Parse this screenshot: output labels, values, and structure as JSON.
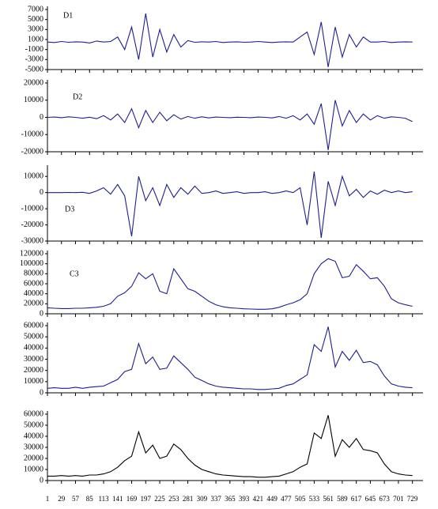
{
  "chart_data": [
    {
      "type": "line",
      "label": "D1",
      "x": [
        1,
        15,
        29,
        43,
        57,
        71,
        85,
        99,
        113,
        127,
        141,
        155,
        169,
        183,
        197,
        211,
        225,
        239,
        253,
        267,
        281,
        295,
        309,
        323,
        337,
        351,
        365,
        379,
        393,
        407,
        421,
        435,
        449,
        463,
        477,
        491,
        505,
        519,
        533,
        547,
        561,
        575,
        589,
        603,
        617,
        631,
        645,
        659,
        673,
        687,
        701,
        715,
        729
      ],
      "series": [
        {
          "color": "#1f1f8f",
          "values": [
            500,
            400,
            600,
            450,
            550,
            500,
            300,
            700,
            500,
            600,
            1500,
            -1000,
            3500,
            -3000,
            6200,
            -2500,
            3000,
            -1500,
            2000,
            -500,
            800,
            450,
            550,
            500,
            600,
            400,
            500,
            550,
            450,
            500,
            600,
            500,
            400,
            500,
            550,
            500,
            1500,
            2500,
            -2000,
            4500,
            -4500,
            3500,
            -2500,
            2000,
            -500,
            1500,
            500,
            500,
            600,
            400,
            500,
            550,
            500
          ]
        }
      ],
      "xlim": [
        1,
        750
      ],
      "xticks": [
        1,
        29,
        57,
        85,
        113,
        141,
        169,
        197,
        225,
        253,
        281,
        309,
        337,
        365,
        393,
        421,
        449,
        477,
        505,
        533,
        561,
        589,
        617,
        645,
        673,
        701,
        729
      ],
      "xtick_labels": false,
      "ylim": [
        -5000,
        7000
      ],
      "yticks": [
        -5000,
        -3000,
        -1000,
        1000,
        3000,
        5000,
        7000
      ]
    },
    {
      "type": "line",
      "label": "D2",
      "x": [
        1,
        15,
        29,
        43,
        57,
        71,
        85,
        99,
        113,
        127,
        141,
        155,
        169,
        183,
        197,
        211,
        225,
        239,
        253,
        267,
        281,
        295,
        309,
        323,
        337,
        351,
        365,
        379,
        393,
        407,
        421,
        435,
        449,
        463,
        477,
        491,
        505,
        519,
        533,
        547,
        561,
        575,
        589,
        603,
        617,
        631,
        645,
        659,
        673,
        687,
        701,
        715,
        729
      ],
      "series": [
        {
          "color": "#1f1f8f",
          "values": [
            0,
            200,
            -200,
            300,
            0,
            -500,
            100,
            -800,
            1000,
            -1500,
            2000,
            -3000,
            5000,
            -6000,
            4000,
            -3000,
            3000,
            -2000,
            1500,
            -1000,
            500,
            -500,
            300,
            -300,
            200,
            0,
            -200,
            100,
            0,
            -200,
            200,
            0,
            -300,
            500,
            -500,
            1000,
            -1500,
            2000,
            -4000,
            8000,
            -19000,
            10000,
            -5000,
            4000,
            -3000,
            2000,
            -1500,
            1000,
            -500,
            300,
            0,
            -500,
            -2500
          ]
        }
      ],
      "xlim": [
        1,
        750
      ],
      "xticks": [
        1,
        29,
        57,
        85,
        113,
        141,
        169,
        197,
        225,
        253,
        281,
        309,
        337,
        365,
        393,
        421,
        449,
        477,
        505,
        533,
        561,
        589,
        617,
        645,
        673,
        701,
        729
      ],
      "xtick_labels": false,
      "ylim": [
        -20000,
        20000
      ],
      "yticks": [
        -20000,
        -10000,
        0,
        10000,
        20000
      ]
    },
    {
      "type": "line",
      "label": "D3",
      "x": [
        1,
        15,
        29,
        43,
        57,
        71,
        85,
        99,
        113,
        127,
        141,
        155,
        169,
        183,
        197,
        211,
        225,
        239,
        253,
        267,
        281,
        295,
        309,
        323,
        337,
        351,
        365,
        379,
        393,
        407,
        421,
        435,
        449,
        463,
        477,
        491,
        505,
        519,
        533,
        547,
        561,
        575,
        589,
        603,
        617,
        631,
        645,
        659,
        673,
        687,
        701,
        715,
        729
      ],
      "series": [
        {
          "color": "#1f1f8f",
          "values": [
            0,
            0,
            0,
            100,
            0,
            200,
            -500,
            1000,
            3000,
            -1000,
            5000,
            -2000,
            -27000,
            10000,
            -5000,
            3000,
            -8000,
            5000,
            -3000,
            3000,
            -1000,
            4000,
            -500,
            0,
            1000,
            -500,
            0,
            500,
            -500,
            0,
            0,
            500,
            -500,
            0,
            1000,
            0,
            3000,
            -20000,
            13000,
            -28000,
            7000,
            -8000,
            10000,
            -2000,
            2000,
            -3000,
            1000,
            -1000,
            1500,
            0,
            1000,
            0,
            500
          ]
        }
      ],
      "xlim": [
        1,
        750
      ],
      "xticks": [
        1,
        29,
        57,
        85,
        113,
        141,
        169,
        197,
        225,
        253,
        281,
        309,
        337,
        365,
        393,
        421,
        449,
        477,
        505,
        533,
        561,
        589,
        617,
        645,
        673,
        701,
        729
      ],
      "xtick_labels": false,
      "ylim": [
        -30000,
        15000
      ],
      "yticks": [
        -30000,
        -20000,
        -10000,
        0,
        10000
      ]
    },
    {
      "type": "line",
      "label": "C3",
      "x": [
        1,
        15,
        29,
        43,
        57,
        71,
        85,
        99,
        113,
        127,
        141,
        155,
        169,
        183,
        197,
        211,
        225,
        239,
        253,
        267,
        281,
        295,
        309,
        323,
        337,
        351,
        365,
        379,
        393,
        407,
        421,
        435,
        449,
        463,
        477,
        491,
        505,
        519,
        533,
        547,
        561,
        575,
        589,
        603,
        617,
        631,
        645,
        659,
        673,
        687,
        701,
        715,
        729
      ],
      "series": [
        {
          "color": "#1f1f8f",
          "values": [
            12000,
            11000,
            10500,
            10500,
            11000,
            11000,
            12000,
            13000,
            15000,
            20000,
            35000,
            42000,
            55000,
            82000,
            70000,
            80000,
            45000,
            40000,
            90000,
            70000,
            50000,
            45000,
            35000,
            25000,
            18000,
            14000,
            12000,
            11000,
            10000,
            9500,
            9000,
            9000,
            10000,
            13000,
            18000,
            22000,
            28000,
            40000,
            80000,
            100000,
            110000,
            105000,
            72000,
            75000,
            98000,
            85000,
            70000,
            72000,
            55000,
            30000,
            22000,
            18000,
            15000
          ]
        }
      ],
      "xlim": [
        1,
        750
      ],
      "xticks": [
        1,
        29,
        57,
        85,
        113,
        141,
        169,
        197,
        225,
        253,
        281,
        309,
        337,
        365,
        393,
        421,
        449,
        477,
        505,
        533,
        561,
        589,
        617,
        645,
        673,
        701,
        729
      ],
      "xtick_labels": false,
      "ylim": [
        0,
        120000
      ],
      "yticks": [
        0,
        20000,
        40000,
        60000,
        80000,
        100000,
        120000
      ]
    },
    {
      "type": "line",
      "x": [
        1,
        15,
        29,
        43,
        57,
        71,
        85,
        99,
        113,
        127,
        141,
        155,
        169,
        183,
        197,
        211,
        225,
        239,
        253,
        267,
        281,
        295,
        309,
        323,
        337,
        351,
        365,
        379,
        393,
        407,
        421,
        435,
        449,
        463,
        477,
        491,
        505,
        519,
        533,
        547,
        561,
        575,
        589,
        603,
        617,
        631,
        645,
        659,
        673,
        687,
        701,
        715,
        729
      ],
      "series": [
        {
          "color": "#1f1f8f",
          "values": [
            4000,
            4500,
            4000,
            4000,
            5000,
            4000,
            5000,
            5500,
            6000,
            9000,
            12000,
            19000,
            21000,
            44000,
            26000,
            32000,
            21000,
            22000,
            33000,
            27000,
            21000,
            14000,
            11000,
            8000,
            6000,
            5000,
            4500,
            4000,
            3500,
            3500,
            3000,
            3000,
            3500,
            4000,
            6500,
            8000,
            12000,
            16000,
            43000,
            37000,
            59000,
            23000,
            37000,
            29000,
            38000,
            27000,
            28000,
            25000,
            15000,
            8000,
            6000,
            5000,
            4500
          ]
        }
      ],
      "xlim": [
        1,
        750
      ],
      "xticks": [
        1,
        29,
        57,
        85,
        113,
        141,
        169,
        197,
        225,
        253,
        281,
        309,
        337,
        365,
        393,
        421,
        449,
        477,
        505,
        533,
        561,
        589,
        617,
        645,
        673,
        701,
        729
      ],
      "xtick_labels": false,
      "ylim": [
        0,
        60000
      ],
      "yticks": [
        0,
        10000,
        20000,
        30000,
        40000,
        50000,
        60000
      ]
    },
    {
      "type": "line",
      "x": [
        1,
        15,
        29,
        43,
        57,
        71,
        85,
        99,
        113,
        127,
        141,
        155,
        169,
        183,
        197,
        211,
        225,
        239,
        253,
        267,
        281,
        295,
        309,
        323,
        337,
        351,
        365,
        379,
        393,
        407,
        421,
        435,
        449,
        463,
        477,
        491,
        505,
        519,
        533,
        547,
        561,
        575,
        589,
        603,
        617,
        631,
        645,
        659,
        673,
        687,
        701,
        715,
        729
      ],
      "series": [
        {
          "color": "#000000",
          "values": [
            4000,
            4000,
            4500,
            4000,
            4500,
            4000,
            5000,
            5000,
            6000,
            8000,
            12000,
            18000,
            22000,
            44000,
            25000,
            32000,
            20000,
            22000,
            33000,
            28000,
            20000,
            14000,
            10000,
            8000,
            6000,
            5000,
            4500,
            4000,
            3500,
            3500,
            3000,
            3000,
            3500,
            4000,
            6000,
            8000,
            12000,
            15000,
            43000,
            38000,
            59000,
            22000,
            37000,
            30000,
            38000,
            28000,
            27000,
            25000,
            15000,
            8000,
            6000,
            5000,
            4500
          ]
        }
      ],
      "xlim": [
        1,
        750
      ],
      "xticks": [
        1,
        29,
        57,
        85,
        113,
        141,
        169,
        197,
        225,
        253,
        281,
        309,
        337,
        365,
        393,
        421,
        449,
        477,
        505,
        533,
        561,
        589,
        617,
        645,
        673,
        701,
        729
      ],
      "xtick_labels": true,
      "ylim": [
        0,
        60000
      ],
      "yticks": [
        0,
        10000,
        20000,
        30000,
        40000,
        50000,
        60000
      ]
    }
  ]
}
